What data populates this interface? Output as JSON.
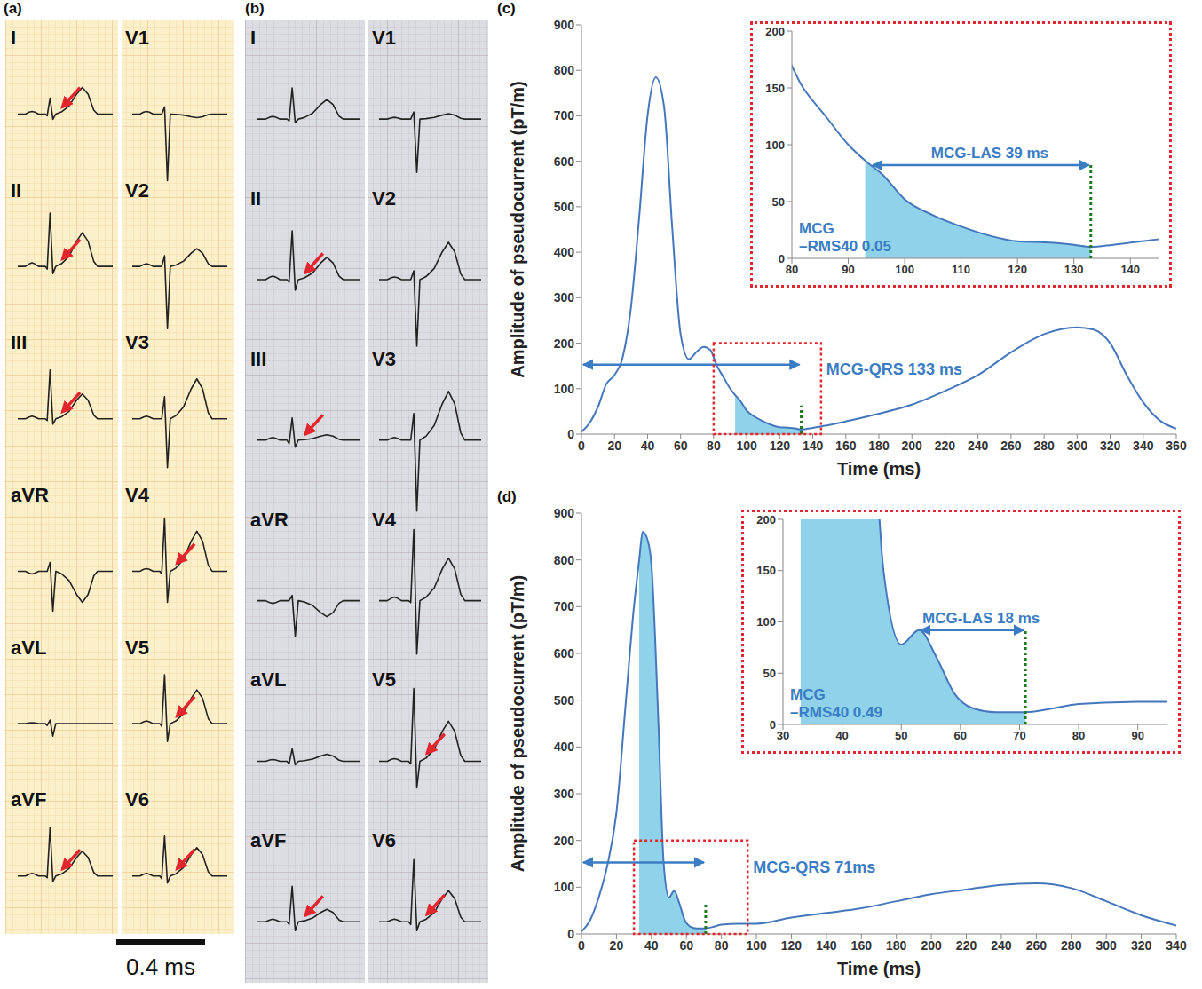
{
  "ecg_panels": [
    {
      "panel_label": "(a)",
      "columns": [
        [
          {
            "lead": "I",
            "arrow": true
          },
          {
            "lead": "II",
            "arrow": true
          },
          {
            "lead": "III",
            "arrow": true
          },
          {
            "lead": "aVR",
            "arrow": false
          },
          {
            "lead": "aVL",
            "arrow": false
          },
          {
            "lead": "aVF",
            "arrow": true
          }
        ],
        [
          {
            "lead": "V1",
            "arrow": false
          },
          {
            "lead": "V2",
            "arrow": false
          },
          {
            "lead": "V3",
            "arrow": false
          },
          {
            "lead": "V4",
            "arrow": true
          },
          {
            "lead": "V5",
            "arrow": true
          },
          {
            "lead": "V6",
            "arrow": true
          }
        ]
      ]
    },
    {
      "panel_label": "(b)",
      "columns": [
        [
          {
            "lead": "I",
            "arrow": false
          },
          {
            "lead": "II",
            "arrow": true
          },
          {
            "lead": "III",
            "arrow": true
          },
          {
            "lead": "aVR",
            "arrow": false
          },
          {
            "lead": "aVL",
            "arrow": false
          },
          {
            "lead": "aVF",
            "arrow": true
          }
        ],
        [
          {
            "lead": "V1",
            "arrow": false
          },
          {
            "lead": "V2",
            "arrow": false
          },
          {
            "lead": "V3",
            "arrow": false
          },
          {
            "lead": "V4",
            "arrow": false
          },
          {
            "lead": "V5",
            "arrow": true
          },
          {
            "lead": "V6",
            "arrow": true
          }
        ]
      ]
    }
  ],
  "scale_bar": "0.4 ms",
  "chart_data": [
    {
      "type": "line",
      "panel_label": "(c)",
      "x_label": "Time (ms)",
      "y_label": "Amplitude of pseudocurrent (pT/m)",
      "color": "#4577bd",
      "x": [
        0,
        5,
        10,
        15,
        20,
        25,
        30,
        35,
        40,
        45,
        50,
        55,
        60,
        65,
        70,
        74,
        78,
        82,
        86,
        90,
        93,
        96,
        100,
        105,
        110,
        115,
        120,
        125,
        130,
        133,
        137,
        142,
        150,
        160,
        180,
        200,
        220,
        240,
        260,
        280,
        300,
        310,
        320,
        330,
        340,
        350,
        360
      ],
      "values": [
        5,
        25,
        60,
        110,
        130,
        170,
        280,
        480,
        700,
        785,
        720,
        450,
        220,
        165,
        182,
        192,
        185,
        150,
        125,
        100,
        86,
        74,
        52,
        38,
        28,
        20,
        15,
        14,
        12,
        10,
        12,
        15,
        20,
        28,
        45,
        65,
        95,
        130,
        180,
        220,
        235,
        230,
        200,
        130,
        70,
        30,
        12
      ],
      "xlim": [
        0,
        360
      ],
      "xticks": [
        0,
        20,
        40,
        60,
        80,
        100,
        120,
        140,
        160,
        180,
        200,
        220,
        240,
        260,
        280,
        300,
        320,
        340,
        360
      ],
      "ylim": [
        0,
        900
      ],
      "yticks": [
        0,
        100,
        200,
        300,
        400,
        500,
        600,
        700,
        800,
        900
      ],
      "shaded_x": [
        93,
        133
      ],
      "qrs_end": 133,
      "las_range": [
        94,
        133
      ],
      "annotations": {
        "qrs": "MCG-QRS 133 ms",
        "las": "MCG-LAS 39 ms",
        "rms": "MCG –RMS40 0.05"
      },
      "inset": {
        "xlim": [
          80,
          145
        ],
        "xticks": [
          80,
          90,
          100,
          110,
          120,
          130,
          140
        ],
        "ylim": [
          0,
          200
        ],
        "yticks": [
          0,
          50,
          100,
          150,
          200
        ]
      }
    },
    {
      "type": "line",
      "panel_label": "(d)",
      "x_label": "Time (ms)",
      "y_label": "Amplitude of pseudocurrent (pT/m)",
      "color": "#4577bd",
      "x": [
        0,
        5,
        10,
        15,
        20,
        25,
        30,
        33,
        35,
        38,
        40,
        44,
        47,
        50,
        53,
        56,
        59,
        62,
        66,
        71,
        75,
        80,
        90,
        100,
        120,
        140,
        160,
        180,
        200,
        220,
        240,
        260,
        280,
        300,
        320,
        340
      ],
      "values": [
        5,
        30,
        80,
        150,
        260,
        480,
        700,
        800,
        860,
        840,
        790,
        450,
        150,
        78,
        92,
        65,
        30,
        16,
        12,
        12,
        15,
        20,
        22,
        22,
        35,
        45,
        55,
        70,
        85,
        95,
        105,
        108,
        98,
        70,
        40,
        18
      ],
      "xlim": [
        0,
        340
      ],
      "xticks": [
        0,
        20,
        40,
        60,
        80,
        100,
        120,
        140,
        160,
        180,
        200,
        220,
        240,
        260,
        280,
        300,
        320,
        340
      ],
      "ylim": [
        0,
        900
      ],
      "yticks": [
        0,
        100,
        200,
        300,
        400,
        500,
        600,
        700,
        800,
        900
      ],
      "shaded_x": [
        33,
        71
      ],
      "qrs_end": 71,
      "las_range": [
        53,
        71
      ],
      "annotations": {
        "qrs": "MCG-QRS 71ms",
        "las": "MCG-LAS 18 ms",
        "rms": "MCG –RMS40 0.49"
      },
      "inset": {
        "xlim": [
          30,
          95
        ],
        "xticks": [
          30,
          40,
          50,
          60,
          70,
          80,
          90
        ],
        "ylim": [
          0,
          200
        ],
        "yticks": [
          0,
          50,
          100,
          150,
          200
        ]
      }
    }
  ]
}
